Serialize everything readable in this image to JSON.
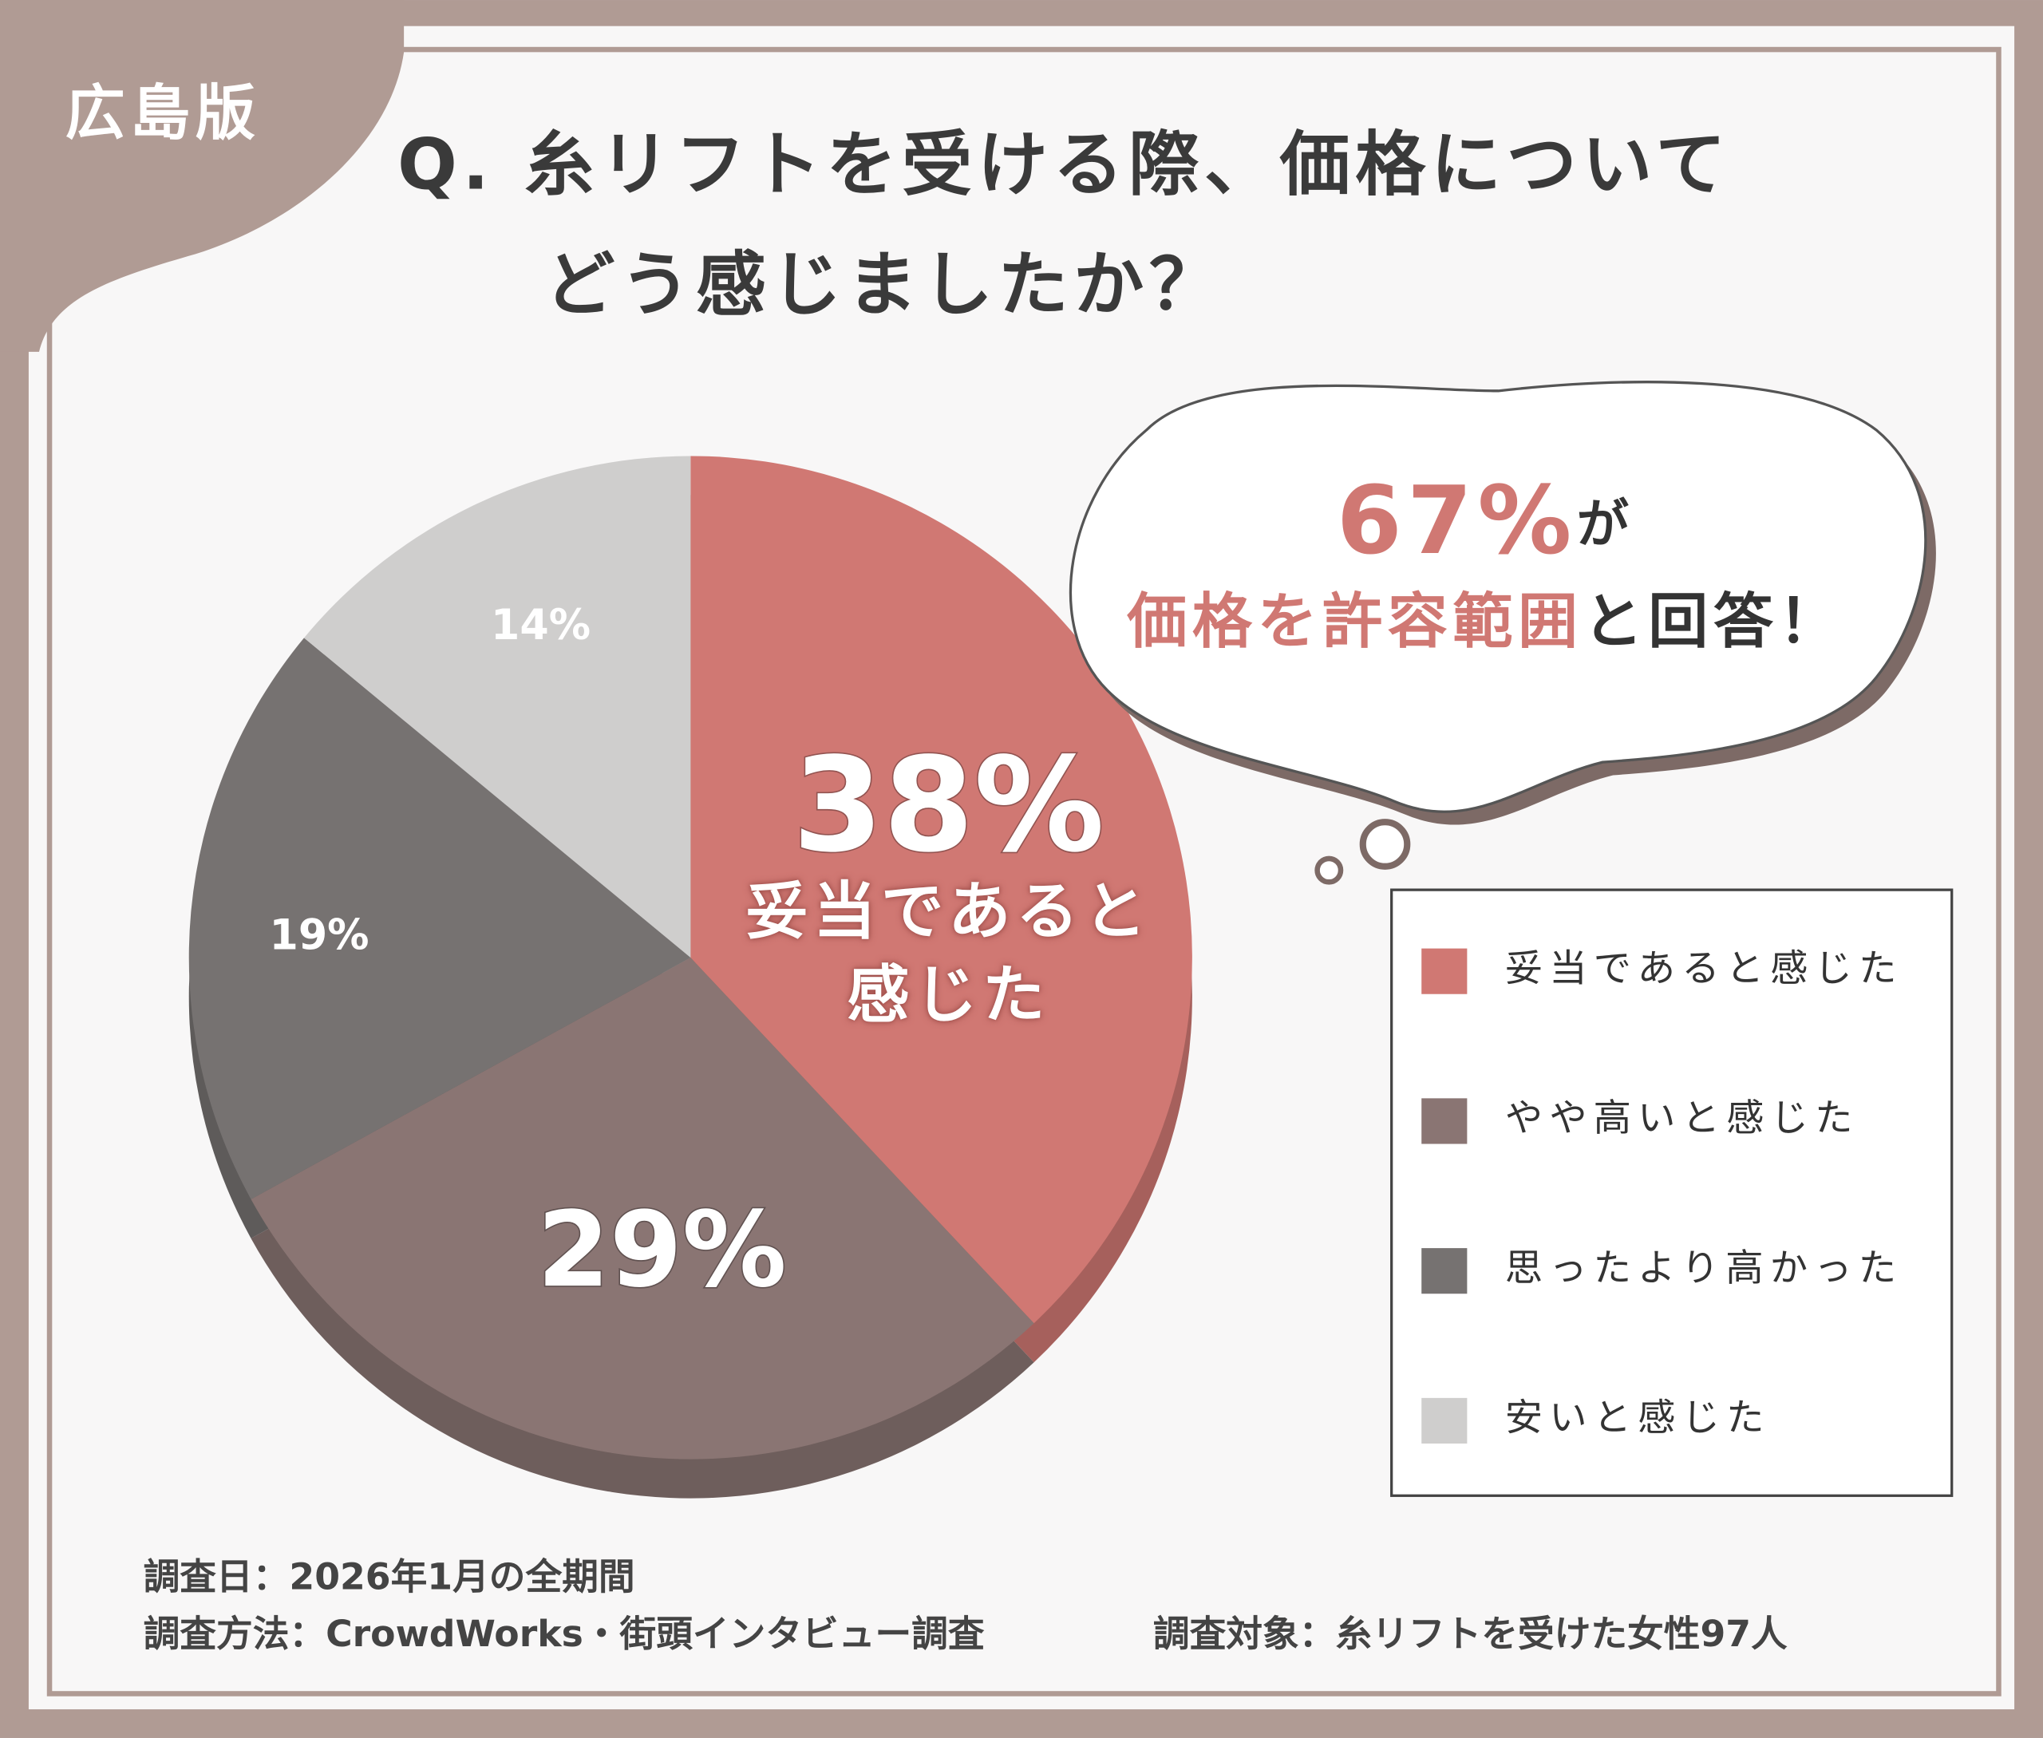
{
  "badge": "広島版",
  "chart_data": {
    "type": "pie",
    "title": [
      "Q. 糸リフトを受ける際、価格について",
      "どう感じましたか？"
    ],
    "categories": [
      "妥当であると感じた",
      "やや高いと感じた",
      "思ったより高かった",
      "安いと感じた"
    ],
    "values": [
      38,
      29,
      19,
      14
    ],
    "value_labels": [
      "38%",
      "29%",
      "19%",
      "14%"
    ],
    "colors": [
      "#d07873",
      "#8a7573",
      "#767271",
      "#cfcecd"
    ],
    "annotation": [
      [
        {
          "text": "67%",
          "color": "#d07873"
        },
        {
          "text": "が",
          "color": "#333333"
        }
      ],
      [
        {
          "text": "価格を許容範囲",
          "color": "#d07873"
        },
        {
          "text": "と回答！",
          "color": "#333333"
        }
      ]
    ]
  },
  "notes": [
    "調査日：2026年1月の全期間",
    "調査方法：CrowdWorks・街頭インタビュー調査",
    "調査対象：糸リフトを受けた女性97人"
  ]
}
